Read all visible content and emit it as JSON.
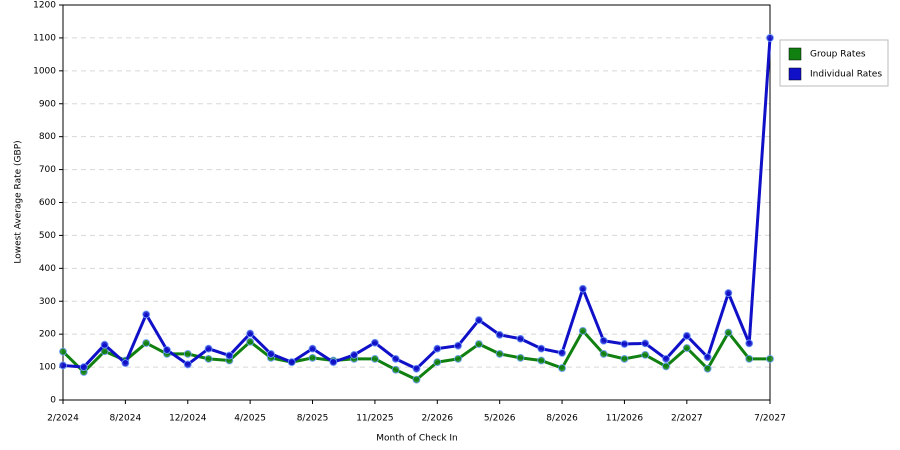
{
  "chart_data": {
    "type": "line",
    "x_label": "Month of Check In",
    "y_label": "Lowest Average Rate (GBP)",
    "categories": [
      "2/2024",
      null,
      null,
      "8/2024",
      null,
      null,
      "12/2024",
      null,
      null,
      "4/2025",
      null,
      null,
      "8/2025",
      null,
      null,
      "11/2025",
      null,
      null,
      "2/2026",
      null,
      null,
      "5/2026",
      null,
      null,
      "8/2026",
      null,
      null,
      "11/2026",
      null,
      null,
      "2/2027",
      null,
      null,
      null,
      "7/2027"
    ],
    "series": [
      {
        "name": "Group Rates",
        "color": "#108010",
        "values": [
          147,
          85,
          148,
          120,
          173,
          140,
          140,
          125,
          120,
          177,
          128,
          115,
          128,
          120,
          125,
          125,
          92,
          62,
          115,
          125,
          170,
          140,
          128,
          120,
          97,
          210,
          140,
          125,
          137,
          102,
          158,
          95,
          205,
          125,
          125
        ]
      },
      {
        "name": "Individual Rates",
        "color": "#1010c8",
        "values": [
          105,
          100,
          168,
          112,
          260,
          152,
          108,
          156,
          135,
          202,
          140,
          115,
          156,
          115,
          137,
          174,
          125,
          95,
          156,
          165,
          243,
          198,
          186,
          156,
          143,
          338,
          180,
          170,
          172,
          125,
          195,
          130,
          325,
          172,
          1100
        ]
      }
    ],
    "ylim": [
      0,
      1200
    ],
    "yticks": [
      0,
      100,
      200,
      300,
      400,
      500,
      600,
      700,
      800,
      900,
      1000,
      1100,
      1200
    ],
    "grid": true,
    "legend": "right"
  }
}
